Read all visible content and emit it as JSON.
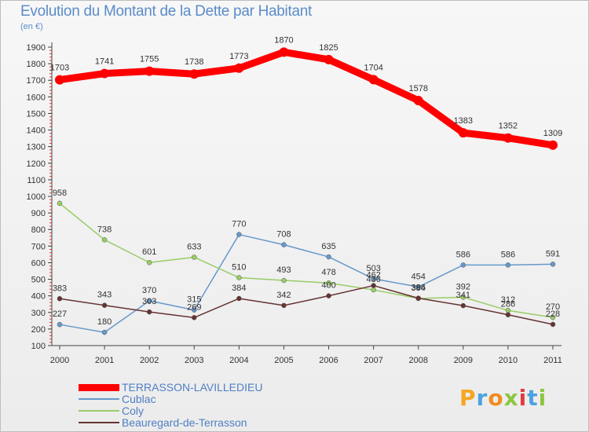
{
  "page": {
    "title": "Evolution du Montant de la Dette par Habitant",
    "subtitle": "(en €)"
  },
  "logo": {
    "text": "Proxiti",
    "letter_colors": [
      "#f5a623",
      "#4aa3df",
      "#f08c1f",
      "#8dc63f",
      "#e23c3c",
      "#4aa3df",
      "#8dc63f"
    ]
  },
  "chart_data": {
    "type": "line",
    "title": "Evolution du Montant de la Dette par Habitant",
    "subtitle": "(en €)",
    "xlabel": "",
    "ylabel": "",
    "x": [
      "2000",
      "2001",
      "2002",
      "2003",
      "2004",
      "2005",
      "2006",
      "2007",
      "2008",
      "2009",
      "2010",
      "2011"
    ],
    "ylim": [
      100,
      1900
    ],
    "yticks": [
      100,
      200,
      300,
      400,
      500,
      600,
      700,
      800,
      900,
      1000,
      1100,
      1200,
      1300,
      1400,
      1500,
      1600,
      1700,
      1800,
      1900
    ],
    "grid": false,
    "legend_position": "bottom-left",
    "series": [
      {
        "name": "TERRASSON-LAVILLEDIEU",
        "color": "#ff0000",
        "values": [
          1703,
          1741,
          1755,
          1738,
          1773,
          1870,
          1825,
          1704,
          1578,
          1383,
          1352,
          1309
        ]
      },
      {
        "name": "Cublac",
        "color": "#6699cc",
        "values": [
          227,
          180,
          370,
          315,
          770,
          708,
          635,
          503,
          454,
          586,
          586,
          591
        ]
      },
      {
        "name": "Coly",
        "color": "#99cc66",
        "values": [
          958,
          738,
          601,
          633,
          510,
          493,
          478,
          436,
          384,
          392,
          312,
          270
        ]
      },
      {
        "name": "Beauregard-de-Terrasson",
        "color": "#663333",
        "values": [
          383,
          343,
          303,
          269,
          384,
          342,
          400,
          462,
          386,
          341,
          286,
          228
        ]
      }
    ]
  }
}
